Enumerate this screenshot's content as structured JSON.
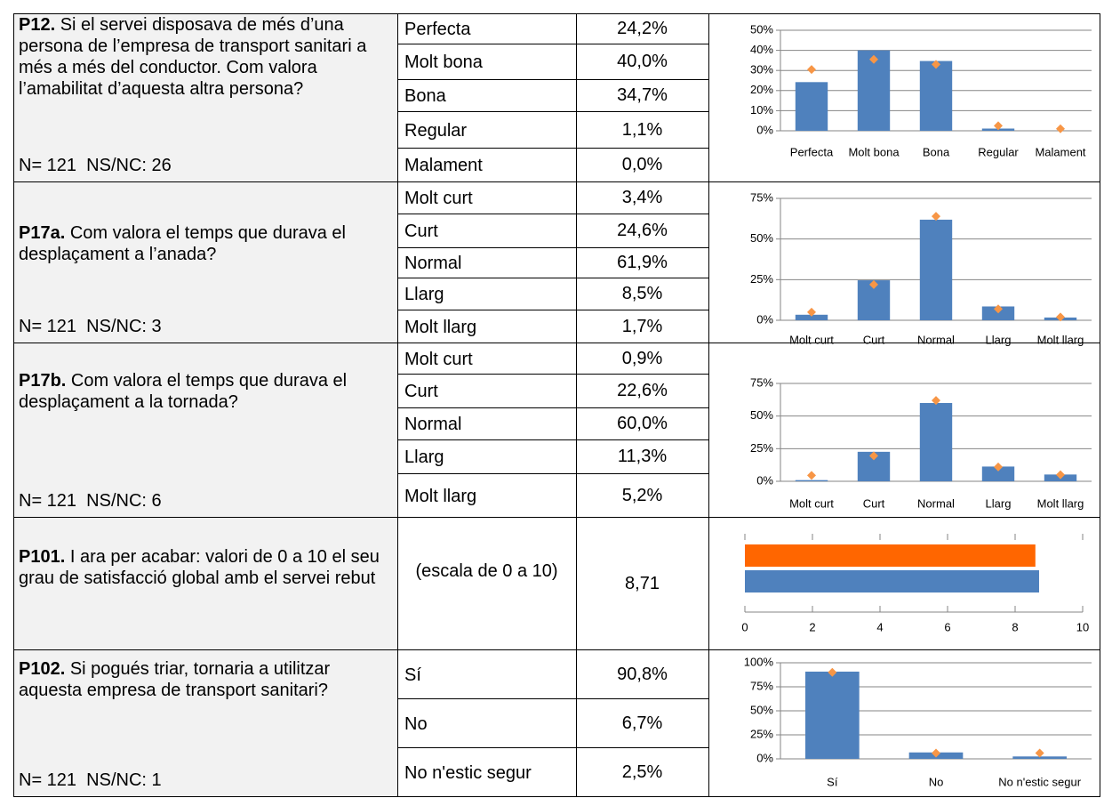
{
  "rows": [
    {
      "code": "P12.",
      "question": "Si el servei disposava de més d’una persona de l’empresa de transport sanitari a més a més del conductor. Com valora l’amabilitat d’aquesta altra persona?",
      "n": "N= 121  NS/NC: 26",
      "options": [
        {
          "label": "Perfecta",
          "value": "24,2%"
        },
        {
          "label": "Molt bona",
          "value": "40,0%"
        },
        {
          "label": "Bona",
          "value": "34,7%"
        },
        {
          "label": "Regular",
          "value": "1,1%"
        },
        {
          "label": "Malament",
          "value": "0,0%"
        }
      ],
      "chart": {
        "type": "bar",
        "ylim": [
          0,
          50
        ],
        "yticks": [
          {
            "value": 0,
            "label": "0%"
          },
          {
            "value": 10,
            "label": "10%"
          },
          {
            "value": 20,
            "label": "20%"
          },
          {
            "value": 30,
            "label": "30%"
          },
          {
            "value": 40,
            "label": "40%"
          },
          {
            "value": 50,
            "label": "50%"
          }
        ],
        "series": [
          {
            "color": "#4f81bd",
            "values": [
              24.2,
              40.0,
              34.7,
              1.1,
              0.0
            ]
          },
          {
            "color": "#f79646",
            "marker": "diamond",
            "values": [
              30.5,
              35.5,
              33,
              2.5,
              1
            ]
          }
        ]
      }
    },
    {
      "code": "P17a.",
      "question": "Com valora el temps que durava el desplaçament a l’anada?",
      "n": "N= 121  NS/NC: 3",
      "options": [
        {
          "label": "Molt curt",
          "value": "3,4%"
        },
        {
          "label": "Curt",
          "value": "24,6%"
        },
        {
          "label": "Normal",
          "value": "61,9%"
        },
        {
          "label": "Llarg",
          "value": "8,5%"
        },
        {
          "label": "Molt llarg",
          "value": "1,7%"
        }
      ],
      "chart": {
        "type": "bar",
        "ylim": [
          0,
          75
        ],
        "yticks": [
          {
            "value": 0,
            "label": "0%"
          },
          {
            "value": 25,
            "label": "25%"
          },
          {
            "value": 50,
            "label": "50%"
          },
          {
            "value": 75,
            "label": "75%"
          }
        ],
        "series": [
          {
            "color": "#4f81bd",
            "values": [
              3.4,
              24.6,
              61.9,
              8.5,
              1.7
            ]
          },
          {
            "color": "#f79646",
            "marker": "diamond",
            "values": [
              5,
              22,
              64,
              7,
              2
            ]
          }
        ]
      }
    },
    {
      "code": "P17b.",
      "question": "Com valora el temps que durava el desplaçament a la tornada?",
      "n": "N= 121  NS/NC: 6",
      "options": [
        {
          "label": "Molt curt",
          "value": "0,9%"
        },
        {
          "label": "Curt",
          "value": "22,6%"
        },
        {
          "label": "Normal",
          "value": "60,0%"
        },
        {
          "label": "Llarg",
          "value": "11,3%"
        },
        {
          "label": "Molt llarg",
          "value": "5,2%"
        }
      ],
      "chart": {
        "type": "bar",
        "ylim": [
          0,
          75
        ],
        "yticks": [
          {
            "value": 0,
            "label": "0%"
          },
          {
            "value": 25,
            "label": "25%"
          },
          {
            "value": 50,
            "label": "50%"
          },
          {
            "value": 75,
            "label": "75%"
          }
        ],
        "series": [
          {
            "color": "#4f81bd",
            "values": [
              0.9,
              22.6,
              60.0,
              11.3,
              5.2
            ]
          },
          {
            "color": "#f79646",
            "marker": "diamond",
            "values": [
              4.5,
              19.5,
              62,
              11,
              5
            ]
          }
        ]
      }
    },
    {
      "code": "P101.",
      "question": "I ara per acabar: valori de 0 a 10 el seu grau de satisfacció global amb el servei rebut",
      "options": [
        {
          "label": "(escala de 0 a 10)",
          "value": "8,71"
        }
      ],
      "chart": {
        "type": "barh",
        "xlim": [
          0,
          10
        ],
        "xticks": [
          0,
          2,
          4,
          6,
          8,
          10
        ],
        "series": [
          {
            "color": "#ff6600",
            "values": [
              8.6
            ]
          },
          {
            "color": "#4f81bd",
            "values": [
              8.71
            ]
          }
        ]
      }
    },
    {
      "code": "P102.",
      "question": "Si pogués triar, tornaria a utilitzar aquesta empresa de transport sanitari?",
      "n": "N= 121  NS/NC: 1",
      "options": [
        {
          "label": "Sí",
          "value": "90,8%"
        },
        {
          "label": "No",
          "value": "6,7%"
        },
        {
          "label": "No n'estic segur",
          "value": "2,5%"
        }
      ],
      "chart": {
        "type": "bar",
        "ylim": [
          0,
          100
        ],
        "yticks": [
          {
            "value": 0,
            "label": "0%"
          },
          {
            "value": 25,
            "label": "25%"
          },
          {
            "value": 50,
            "label": "50%"
          },
          {
            "value": 75,
            "label": "75%"
          },
          {
            "value": 100,
            "label": "100%"
          }
        ],
        "series": [
          {
            "color": "#4f81bd",
            "values": [
              90.8,
              6.7,
              2.5
            ]
          },
          {
            "color": "#f79646",
            "marker": "diamond",
            "values": [
              90,
              6,
              6
            ]
          }
        ]
      }
    }
  ]
}
